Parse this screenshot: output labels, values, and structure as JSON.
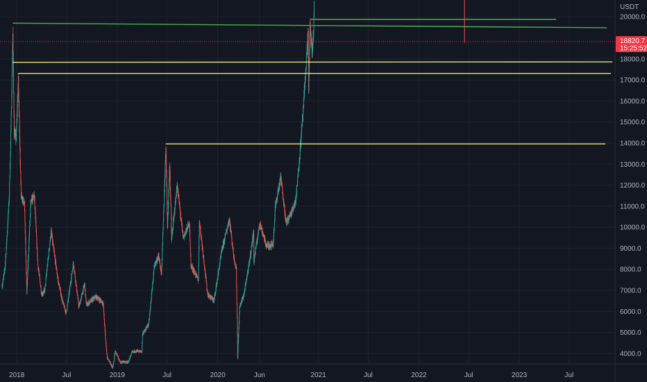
{
  "chart_data": {
    "type": "candlestick",
    "pair_unit": "USDT",
    "y_axis": {
      "range": [
        3500,
        20800
      ],
      "ticks": [
        {
          "value": 20000,
          "label": "20000.0"
        },
        {
          "value": 18000,
          "label": "18000.0"
        },
        {
          "value": 17000,
          "label": "17000.0"
        },
        {
          "value": 16000,
          "label": "16000.0"
        },
        {
          "value": 15000,
          "label": "15000.0"
        },
        {
          "value": 14000,
          "label": "14000.0"
        },
        {
          "value": 13000,
          "label": "13000.0"
        },
        {
          "value": 12000,
          "label": "12000.0"
        },
        {
          "value": 11000,
          "label": "11000.0"
        },
        {
          "value": 10000,
          "label": "10000.0"
        },
        {
          "value": 9000,
          "label": "9000.0"
        },
        {
          "value": 8000,
          "label": "8000.0"
        },
        {
          "value": 7000,
          "label": "7000.0"
        },
        {
          "value": 6000,
          "label": "6000.0"
        },
        {
          "value": 5000,
          "label": "5000.0"
        },
        {
          "value": 4000,
          "label": "4000.0"
        }
      ]
    },
    "x_axis": {
      "range": [
        "2017-11-01",
        "2023-12-15"
      ],
      "ticks": [
        {
          "date": "2018-01-01",
          "label": "2018"
        },
        {
          "date": "2018-07-01",
          "label": "Jul"
        },
        {
          "date": "2019-01-01",
          "label": "2019"
        },
        {
          "date": "2019-07-01",
          "label": "Jul"
        },
        {
          "date": "2020-01-01",
          "label": "2020"
        },
        {
          "date": "2020-06-01",
          "label": "Jun"
        },
        {
          "date": "2021-01-01",
          "label": "2021"
        },
        {
          "date": "2021-07-01",
          "label": "Jul"
        },
        {
          "date": "2022-01-01",
          "label": "2022"
        },
        {
          "date": "2022-07-01",
          "label": "Jul"
        },
        {
          "date": "2023-01-01",
          "label": "2023"
        },
        {
          "date": "2023-07-01",
          "label": "Jul"
        }
      ]
    },
    "price_path": [
      [
        "2017-11-08",
        7200
      ],
      [
        "2017-11-18",
        8000
      ],
      [
        "2017-11-26",
        9600
      ],
      [
        "2017-12-04",
        11500
      ],
      [
        "2017-12-10",
        14500
      ],
      [
        "2017-12-17",
        19200
      ],
      [
        "2017-12-22",
        14500
      ],
      [
        "2017-12-29",
        14200
      ],
      [
        "2018-01-06",
        17000
      ],
      [
        "2018-01-16",
        11500
      ],
      [
        "2018-01-28",
        11200
      ],
      [
        "2018-02-06",
        6900
      ],
      [
        "2018-02-20",
        11200
      ],
      [
        "2018-03-05",
        11500
      ],
      [
        "2018-03-18",
        8200
      ],
      [
        "2018-04-01",
        6800
      ],
      [
        "2018-04-12",
        7000
      ],
      [
        "2018-05-05",
        9800
      ],
      [
        "2018-05-30",
        7500
      ],
      [
        "2018-06-15",
        6500
      ],
      [
        "2018-06-29",
        5900
      ],
      [
        "2018-07-25",
        8300
      ],
      [
        "2018-08-14",
        6200
      ],
      [
        "2018-09-04",
        7300
      ],
      [
        "2018-09-10",
        6300
      ],
      [
        "2018-10-15",
        6700
      ],
      [
        "2018-11-10",
        6400
      ],
      [
        "2018-11-20",
        4500
      ],
      [
        "2018-11-25",
        3800
      ],
      [
        "2018-12-15",
        3300
      ],
      [
        "2018-12-24",
        4100
      ],
      [
        "2019-01-10",
        3600
      ],
      [
        "2019-02-10",
        3600
      ],
      [
        "2019-02-24",
        4100
      ],
      [
        "2019-03-31",
        4100
      ],
      [
        "2019-04-02",
        4900
      ],
      [
        "2019-04-25",
        5400
      ],
      [
        "2019-05-14",
        8000
      ],
      [
        "2019-05-30",
        8700
      ],
      [
        "2019-06-10",
        7700
      ],
      [
        "2019-06-26",
        13800
      ],
      [
        "2019-07-02",
        10000
      ],
      [
        "2019-07-10",
        13000
      ],
      [
        "2019-07-17",
        9400
      ],
      [
        "2019-08-06",
        12000
      ],
      [
        "2019-08-28",
        9500
      ],
      [
        "2019-09-20",
        10200
      ],
      [
        "2019-09-25",
        8200
      ],
      [
        "2019-10-22",
        7500
      ],
      [
        "2019-10-26",
        10300
      ],
      [
        "2019-11-25",
        6800
      ],
      [
        "2019-12-18",
        6500
      ],
      [
        "2020-01-14",
        8800
      ],
      [
        "2020-02-12",
        10400
      ],
      [
        "2020-02-28",
        8600
      ],
      [
        "2020-03-08",
        8000
      ],
      [
        "2020-03-12",
        4900
      ],
      [
        "2020-03-13",
        3800
      ],
      [
        "2020-03-20",
        6200
      ],
      [
        "2020-04-05",
        6800
      ],
      [
        "2020-04-30",
        8800
      ],
      [
        "2020-05-10",
        9800
      ],
      [
        "2020-05-11",
        8400
      ],
      [
        "2020-06-01",
        10200
      ],
      [
        "2020-06-26",
        9100
      ],
      [
        "2020-07-20",
        9200
      ],
      [
        "2020-07-28",
        11000
      ],
      [
        "2020-08-17",
        12400
      ],
      [
        "2020-09-05",
        10200
      ],
      [
        "2020-09-25",
        10700
      ],
      [
        "2020-10-10",
        11300
      ],
      [
        "2020-10-21",
        12900
      ],
      [
        "2020-11-06",
        15500
      ],
      [
        "2020-11-17",
        17800
      ],
      [
        "2020-11-24",
        19300
      ],
      [
        "2020-11-26",
        16600
      ],
      [
        "2020-12-01",
        19600
      ],
      [
        "2020-12-08",
        18300
      ],
      [
        "2020-12-14",
        19200
      ],
      [
        "2020-12-16",
        20800
      ]
    ],
    "horizontal_lines": [
      {
        "color": "#4caf50",
        "from": {
          "date": "2017-12-17",
          "price": 19700
        },
        "to": {
          "date": "2023-11-15",
          "price": 19480
        }
      },
      {
        "color": "#4caf50",
        "from": {
          "date": "2020-12-03",
          "price": 19880
        },
        "to": {
          "date": "2023-05-15",
          "price": 19880
        }
      },
      {
        "color": "#e9e36a",
        "from": {
          "date": "2017-12-17",
          "price": 17840
        },
        "to": {
          "date": "2023-12-05",
          "price": 17860
        }
      },
      {
        "color": "#e9e36a",
        "from": {
          "date": "2018-01-06",
          "price": 17310
        },
        "to": {
          "date": "2023-11-30",
          "price": 17310
        }
      },
      {
        "color": "#e9e36a",
        "from": {
          "date": "2019-06-26",
          "price": 13960
        },
        "to": {
          "date": "2023-11-10",
          "price": 13960
        }
      }
    ],
    "wick_marker": {
      "date": "2022-06-16",
      "high": 20800,
      "low": 18760,
      "color": "#ef5350"
    },
    "last_price": {
      "value": 18820.7,
      "label": "18820.7",
      "countdown": "15:25:52",
      "color": "#f23645"
    },
    "colors": {
      "up": "#26a69a",
      "down": "#ef5350",
      "background": "#131722",
      "grid": "#1e222d",
      "axis_text": "#b2b5be"
    }
  }
}
